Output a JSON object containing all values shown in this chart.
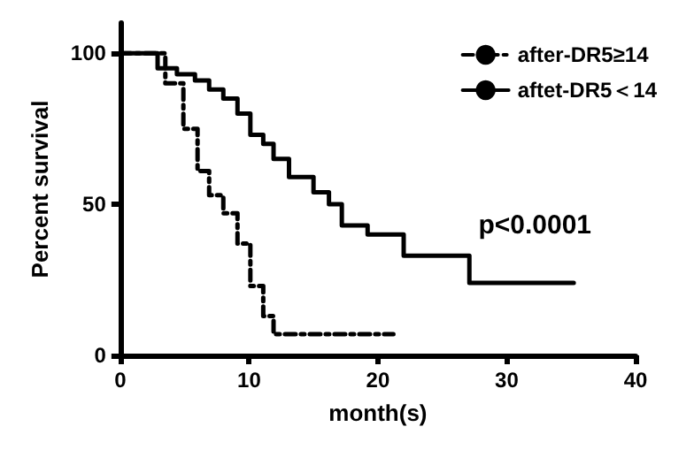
{
  "chart_data": {
    "type": "step",
    "xlabel": "month(s)",
    "ylabel": "Percent survival",
    "xlim": [
      0,
      40
    ],
    "xticks": [
      0,
      10,
      20,
      30,
      40
    ],
    "ylim": [
      0,
      110
    ],
    "yticks": [
      0,
      50,
      100
    ],
    "grid": false,
    "legend": "top right",
    "marker": "none",
    "annotations": [
      "p<0.0001"
    ],
    "series": [
      {
        "name": "after-DR5≥14",
        "color": "#000000",
        "line_style": "dashed",
        "x": [
          0,
          3.5,
          4.9,
          6.0,
          6.9,
          8.0,
          9.1,
          10.1,
          11.1,
          11.9,
          21.2
        ],
        "values": [
          100,
          90,
          75,
          61,
          53,
          47,
          37,
          23,
          13,
          7,
          7
        ]
      },
      {
        "name": "aftet-DR5＜14",
        "color": "#000000",
        "line_style": "solid",
        "x": [
          0,
          2.9,
          4.4,
          5.8,
          6.9,
          8.0,
          9.1,
          10.1,
          11.1,
          11.9,
          13.1,
          15.0,
          16.2,
          17.2,
          19.2,
          22.0,
          27.1,
          35.2
        ],
        "values": [
          100,
          95,
          93,
          91,
          88,
          85,
          80,
          73,
          70,
          65,
          59,
          54,
          50,
          43,
          40,
          33,
          24,
          24
        ]
      }
    ]
  }
}
